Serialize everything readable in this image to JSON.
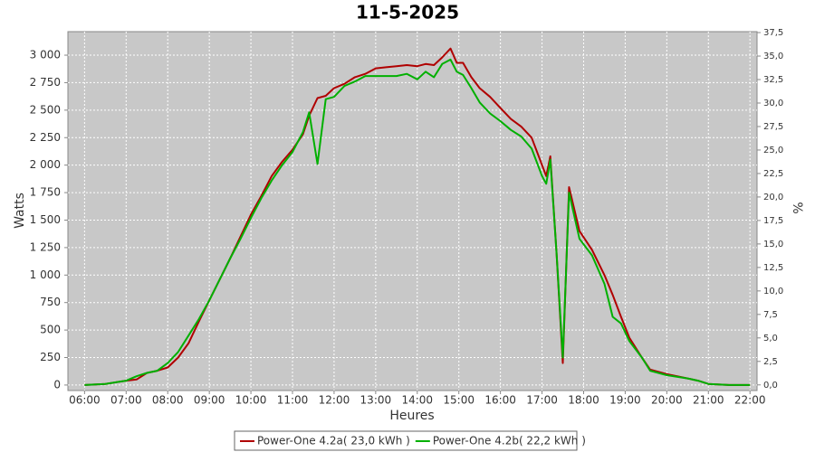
{
  "chart_data": {
    "type": "line",
    "title": "11-5-2025",
    "x_label": "Heures",
    "y_label": "Watts",
    "y2_label": "%",
    "x": [
      6,
      6.5,
      7,
      7.25,
      7.5,
      7.75,
      8,
      8.25,
      8.5,
      8.75,
      9,
      9.25,
      9.5,
      9.75,
      10,
      10.25,
      10.5,
      10.75,
      11,
      11.25,
      11.4,
      11.6,
      11.8,
      12,
      12.25,
      12.5,
      12.75,
      13,
      13.25,
      13.5,
      13.75,
      14,
      14.2,
      14.4,
      14.6,
      14.8,
      14.95,
      15.1,
      15.3,
      15.5,
      15.75,
      16,
      16.25,
      16.5,
      16.75,
      17,
      17.1,
      17.2,
      17.35,
      17.5,
      17.65,
      17.9,
      18.2,
      18.5,
      18.7,
      18.9,
      19.1,
      19.4,
      19.6,
      20,
      20.5,
      20.75,
      21,
      21.5,
      22
    ],
    "series": [
      {
        "name": "Power-One 4.2a( 23,0 kWh )",
        "color": "#b00000",
        "values": [
          0,
          10,
          40,
          50,
          110,
          130,
          160,
          250,
          380,
          580,
          770,
          960,
          1150,
          1350,
          1550,
          1720,
          1900,
          2030,
          2140,
          2280,
          2450,
          2610,
          2630,
          2700,
          2740,
          2800,
          2830,
          2880,
          2890,
          2900,
          2910,
          2900,
          2920,
          2910,
          2980,
          3060,
          2930,
          2930,
          2800,
          2700,
          2620,
          2520,
          2420,
          2350,
          2250,
          2000,
          1900,
          2080,
          1200,
          200,
          1800,
          1400,
          1230,
          1000,
          820,
          620,
          430,
          250,
          140,
          100,
          60,
          40,
          10,
          0,
          0
        ]
      },
      {
        "name": "Power-One 4.2b( 22,2 kWh )",
        "color": "#00b000",
        "values": [
          0,
          10,
          40,
          80,
          110,
          130,
          200,
          300,
          450,
          600,
          770,
          960,
          1150,
          1330,
          1520,
          1700,
          1860,
          2000,
          2120,
          2300,
          2480,
          2010,
          2600,
          2620,
          2720,
          2760,
          2810,
          2810,
          2810,
          2810,
          2830,
          2780,
          2850,
          2800,
          2920,
          2960,
          2850,
          2820,
          2700,
          2570,
          2470,
          2400,
          2320,
          2260,
          2150,
          1900,
          1830,
          2050,
          1200,
          250,
          1750,
          1330,
          1180,
          920,
          620,
          560,
          400,
          250,
          130,
          90,
          60,
          40,
          10,
          0,
          0
        ]
      }
    ],
    "xlim": [
      5.6,
      22.17
    ],
    "xticks": [
      {
        "value": 6,
        "label": "06:00"
      },
      {
        "value": 7,
        "label": "07:00"
      },
      {
        "value": 8,
        "label": "08:00"
      },
      {
        "value": 9,
        "label": "09:00"
      },
      {
        "value": 10,
        "label": "10:00"
      },
      {
        "value": 11,
        "label": "11:00"
      },
      {
        "value": 12,
        "label": "12:00"
      },
      {
        "value": 13,
        "label": "13:00"
      },
      {
        "value": 14,
        "label": "14:00"
      },
      {
        "value": 15,
        "label": "15:00"
      },
      {
        "value": 16,
        "label": "16:00"
      },
      {
        "value": 17,
        "label": "17:00"
      },
      {
        "value": 18,
        "label": "18:00"
      },
      {
        "value": 19,
        "label": "19:00"
      },
      {
        "value": 20,
        "label": "20:00"
      },
      {
        "value": 21,
        "label": "21:00"
      },
      {
        "value": 22,
        "label": "22:00"
      }
    ],
    "ylim": [
      -50,
      3214
    ],
    "yticks": [
      0,
      250,
      500,
      750,
      {
        "value": 1000,
        "label": "1 000"
      },
      {
        "value": 1250,
        "label": "1 250"
      },
      {
        "value": 1500,
        "label": "1 500"
      },
      {
        "value": 1750,
        "label": "1 750"
      },
      {
        "value": 2000,
        "label": "2 000"
      },
      {
        "value": 2250,
        "label": "2 250"
      },
      {
        "value": 2500,
        "label": "2 500"
      },
      {
        "value": 2750,
        "label": "2 750"
      },
      {
        "value": 3000,
        "label": "3 000"
      }
    ],
    "y2lim": [
      -0.6,
      37.6
    ],
    "y2ticks": [
      {
        "value": 0,
        "label": "0,0"
      },
      {
        "value": 2.5,
        "label": "2,5"
      },
      {
        "value": 5,
        "label": "5,0"
      },
      {
        "value": 7.5,
        "label": "7,5"
      },
      {
        "value": 10,
        "label": "10,0"
      },
      {
        "value": 12.5,
        "label": "12,5"
      },
      {
        "value": 15,
        "label": "15,0"
      },
      {
        "value": 17.5,
        "label": "17,5"
      },
      {
        "value": 20,
        "label": "20,0"
      },
      {
        "value": 22.5,
        "label": "22,5"
      },
      {
        "value": 25,
        "label": "25,0"
      },
      {
        "value": 27.5,
        "label": "27,5"
      },
      {
        "value": 30,
        "label": "30,0"
      },
      {
        "value": 32.5,
        "label": "32,5"
      },
      {
        "value": 35,
        "label": "35,0"
      },
      {
        "value": 37.5,
        "label": "37,5"
      }
    ],
    "grid": true,
    "legend": "bottom"
  }
}
